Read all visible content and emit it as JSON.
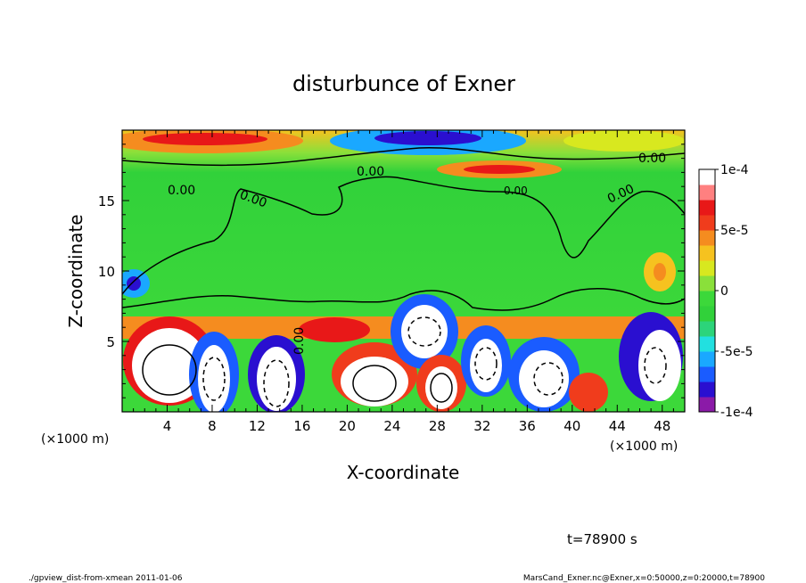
{
  "chart_data": {
    "type": "heatmap",
    "title": "disturbunce of Exner",
    "xlabel": "X-coordinate",
    "ylabel": "Z-coordinate",
    "x_unit": "(×1000 m)",
    "y_unit": "(×1000 m)",
    "xlim": [
      0,
      50
    ],
    "ylim": [
      0,
      20
    ],
    "x_ticks": [
      "4",
      "8",
      "12",
      "16",
      "20",
      "24",
      "28",
      "32",
      "36",
      "40",
      "44",
      "48"
    ],
    "y_ticks": [
      "5",
      "10",
      "15"
    ],
    "contour_labels": [
      "0.00",
      "0.00",
      "0.00",
      "0.00",
      "0.00",
      "0.00",
      "0.00"
    ],
    "colorbar": {
      "min": -0.0001,
      "max": 0.0001,
      "tick_labels": [
        "1e-4",
        "5e-5",
        "0",
        "-5e-5",
        "-1e-4"
      ],
      "colors": [
        "#8b1aa8",
        "#2a0fd0",
        "#1a5cff",
        "#1aa8ff",
        "#22e0e0",
        "#2cd47a",
        "#31d13a",
        "#3cd83a",
        "#8ae03a",
        "#d8e81f",
        "#f6c21f",
        "#f58c1f",
        "#f03c1c",
        "#e81818",
        "#ff8080",
        "#ffffff"
      ]
    },
    "time_label": "t=78900 s"
  },
  "footer": {
    "left": "./gpview_dist-from-xmean  2011-01-06",
    "right": "MarsCand_Exner.nc@Exner,x=0:50000,z=0:20000,t=78900"
  }
}
